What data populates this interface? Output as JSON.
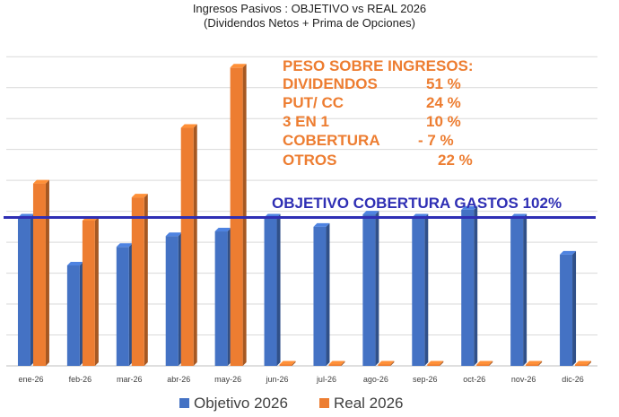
{
  "chart_data": {
    "type": "bar",
    "title": "Ingresos Pasivos : OBJETIVO vs REAL 2026",
    "subtitle": "(Dividendos Netos + Prima de Opciones)",
    "categories": [
      "ene-26",
      "feb-26",
      "mar-26",
      "abr-26",
      "may-26",
      "jun-26",
      "jul-26",
      "ago-26",
      "sep-26",
      "oct-26",
      "nov-26",
      "dic-26"
    ],
    "series": [
      {
        "name": "Objetivo 2026",
        "color": "#4472c4",
        "values": [
          4.8,
          3.25,
          3.85,
          4.2,
          4.35,
          4.8,
          4.5,
          4.9,
          4.8,
          5.05,
          4.8,
          3.6
        ]
      },
      {
        "name": "Real 2026",
        "color": "#ed7d31",
        "values": [
          5.9,
          4.7,
          5.45,
          7.7,
          9.65,
          0,
          0,
          0,
          0,
          0,
          0,
          0
        ]
      }
    ],
    "ylim": [
      0,
      10.5
    ],
    "grid": true,
    "legend_position": "bottom",
    "annotations": {
      "weights_heading": "PESO SOBRE INGRESOS:",
      "weights": [
        {
          "label": "DIVIDENDOS",
          "value": "51 %"
        },
        {
          "label": "PUT/ CC",
          "value": "24 %"
        },
        {
          "label": "3 EN 1",
          "value": "10 %"
        },
        {
          "label": "COBERTURA",
          "value": "- 7 %"
        },
        {
          "label": "OTROS",
          "value": "22 %"
        }
      ],
      "target_line_label": "OBJETIVO COBERTURA GASTOS 102%",
      "target_line_value": 4.8,
      "target_line_color": "#2f2fb4"
    }
  }
}
